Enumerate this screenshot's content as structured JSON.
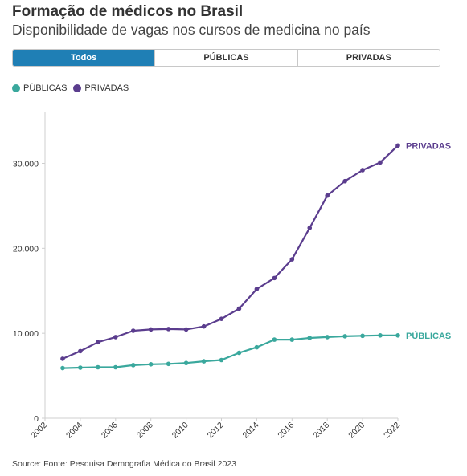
{
  "title": "Formação de médicos no Brasil",
  "subtitle": "Disponibilidade de vagas nos cursos de medicina no país",
  "tabs": [
    {
      "label": "Todos",
      "active": true
    },
    {
      "label": "PÚBLICAS",
      "active": false
    },
    {
      "label": "PRIVADAS",
      "active": false
    }
  ],
  "source": "Source: Fonte: Pesquisa Demografia Médica do Brasil 2023",
  "colors": {
    "publicas": "#3aa89d",
    "privadas": "#5b3d8e",
    "tab_active": "#1f7fb5"
  },
  "chart_data": {
    "type": "line",
    "title": "Formação de médicos no Brasil",
    "subtitle": "Disponibilidade de vagas nos cursos de medicina no país",
    "x": [
      2003,
      2004,
      2005,
      2006,
      2007,
      2008,
      2009,
      2010,
      2011,
      2012,
      2013,
      2014,
      2015,
      2016,
      2017,
      2018,
      2019,
      2020,
      2021,
      2022
    ],
    "series": [
      {
        "name": "PÚBLICAS",
        "color": "#3aa89d",
        "values": [
          5900,
          5950,
          6000,
          6000,
          6250,
          6350,
          6400,
          6500,
          6700,
          6850,
          7700,
          8350,
          9250,
          9250,
          9450,
          9550,
          9650,
          9700,
          9750,
          9750
        ]
      },
      {
        "name": "PRIVADAS",
        "color": "#5b3d8e",
        "values": [
          7000,
          7900,
          8950,
          9550,
          10300,
          10450,
          10500,
          10450,
          10800,
          11700,
          12900,
          15200,
          16500,
          18700,
          22400,
          26200,
          27900,
          29200,
          30100,
          32100
        ]
      }
    ],
    "xticks": [
      "2002",
      "2004",
      "2006",
      "2008",
      "2010",
      "2012",
      "2014",
      "2016",
      "2018",
      "2020",
      "2022"
    ],
    "yticks": [
      "0",
      "10.000",
      "20.000",
      "30.000"
    ],
    "xlim": [
      2002,
      2022
    ],
    "ylim": [
      0,
      36000
    ],
    "legend_position": "top-left",
    "grid": false
  }
}
